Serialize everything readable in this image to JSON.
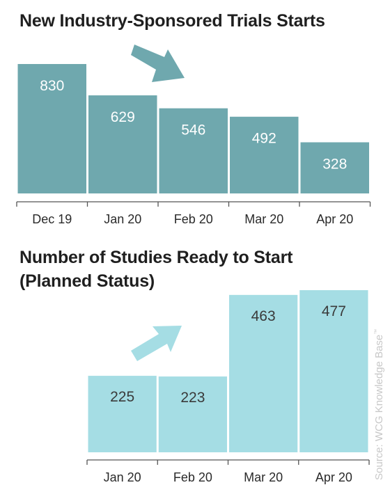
{
  "chart_data": [
    {
      "type": "bar",
      "title": "New Industry-Sponsored Trials Starts",
      "categories": [
        "Dec 19",
        "Jan 20",
        "Feb 20",
        "Mar 20",
        "Apr 20"
      ],
      "values": [
        830,
        629,
        546,
        492,
        328
      ],
      "data_labels": [
        "830",
        "629",
        "546",
        "492",
        "328"
      ],
      "trend_arrow": "down-right",
      "bar_color": "#6fa8ae",
      "label_color": "#ffffff",
      "grid": false
    },
    {
      "type": "bar",
      "title_lines": [
        "Number of Studies Ready to Start",
        "(Planned Status)"
      ],
      "categories": [
        "Jan 20",
        "Feb 20",
        "Mar 20",
        "Apr 20"
      ],
      "values": [
        225,
        223,
        463,
        477
      ],
      "data_labels": [
        "225",
        "223",
        "463",
        "477"
      ],
      "trend_arrow": "up-right",
      "bar_color": "#a5dde4",
      "label_color": "#3a3a3a",
      "grid": false
    }
  ],
  "source": {
    "text": "Source: WCG Knowledge Base",
    "mark": "™"
  }
}
